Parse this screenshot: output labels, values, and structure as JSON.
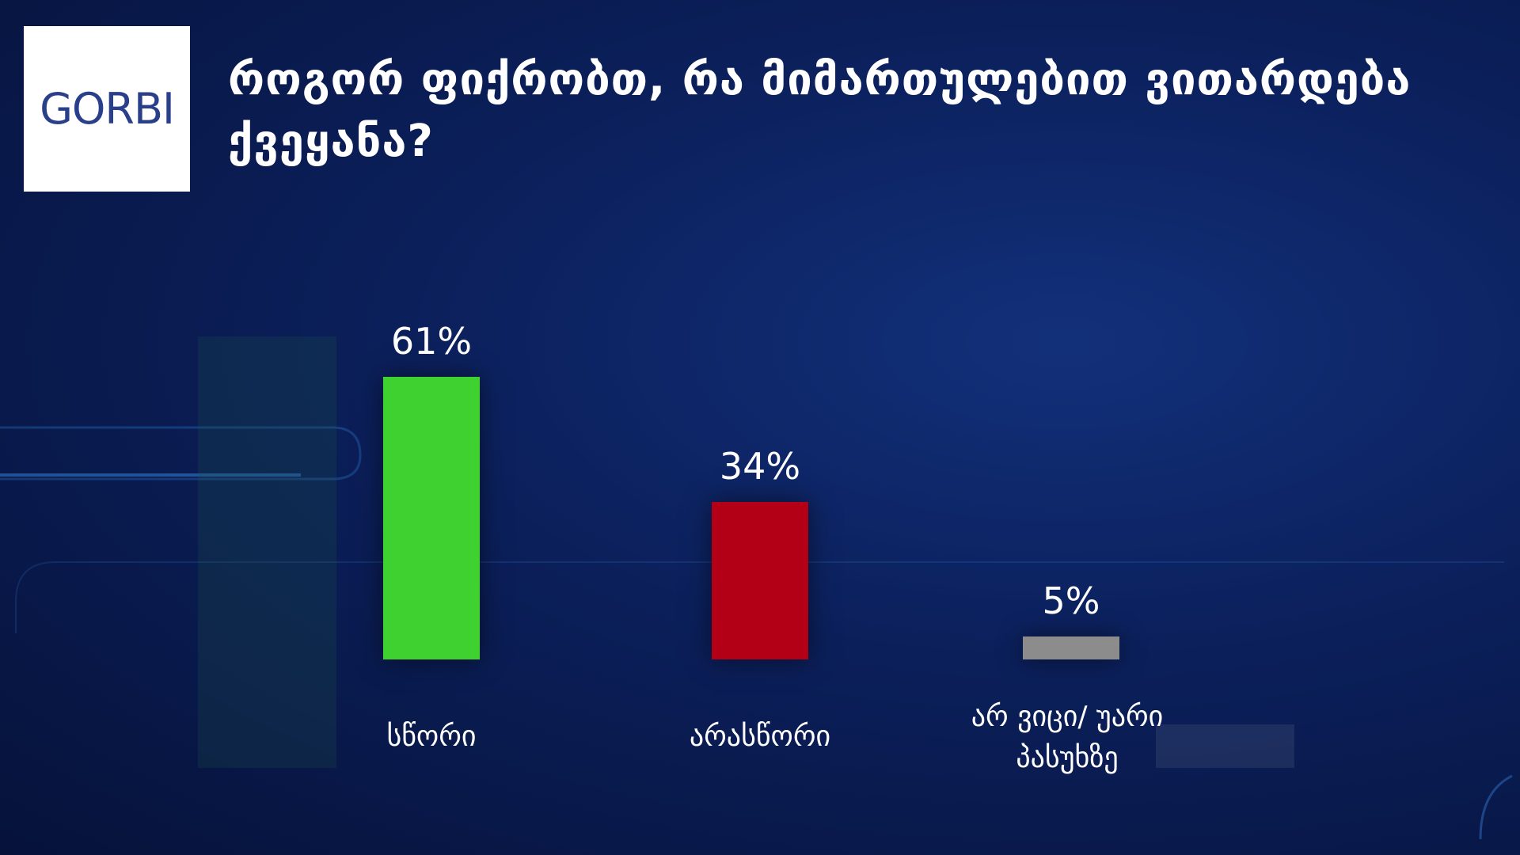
{
  "logo": "GORBI",
  "chart_data": {
    "type": "bar",
    "title": "როგორ ფიქრობთ, რა მიმართულებით ვითარდება ქვეყანა?",
    "categories": [
      "სწორი",
      "არასწორი",
      "არ ვიცი/ უარი პასუხზე"
    ],
    "series": [
      {
        "name": null,
        "values": [
          61,
          34,
          5
        ],
        "value_labels": [
          "61%",
          "34%",
          "5%"
        ],
        "colors": [
          "#3fd12f",
          "#b40016",
          "#8c8c8c"
        ]
      }
    ]
  }
}
